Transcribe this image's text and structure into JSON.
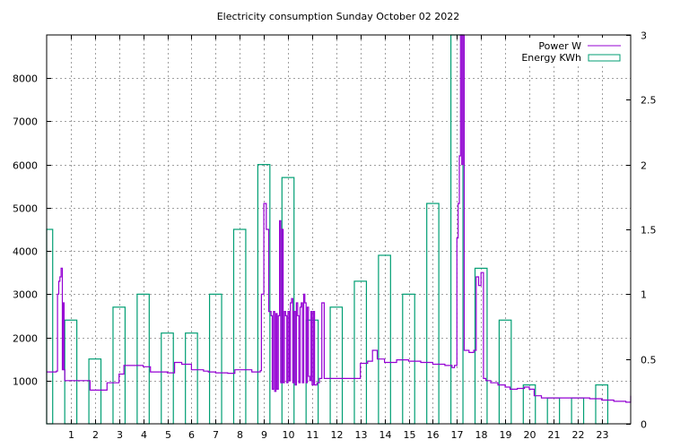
{
  "chart_data": {
    "type": "line",
    "title": "Electricity consumption Sunday October 02 2022",
    "xlim": [
      0,
      24.2
    ],
    "ylim": [
      0,
      9000
    ],
    "y2lim": [
      0,
      3
    ],
    "x_ticks": [
      1,
      2,
      3,
      4,
      5,
      6,
      7,
      8,
      9,
      10,
      11,
      12,
      13,
      14,
      15,
      16,
      17,
      18,
      19,
      20,
      21,
      22,
      23
    ],
    "y_ticks": [
      1000,
      2000,
      3000,
      4000,
      5000,
      6000,
      7000,
      8000
    ],
    "y2_ticks": [
      0,
      0.5,
      1,
      1.5,
      2,
      2.5,
      3
    ],
    "y2_tick_labels": [
      "0",
      "0.5",
      "1",
      "1.5",
      "2",
      "2.5",
      "3"
    ],
    "grid": true,
    "legend_position": "top-right",
    "colors": {
      "power": "#9400d3",
      "energy": "#009e73",
      "grid": "#a0a0a0"
    },
    "series": [
      {
        "name": "Power W",
        "axis": "y",
        "style": "steps",
        "x": [
          0,
          0.4,
          0.45,
          0.5,
          0.55,
          0.6,
          0.65,
          0.7,
          0.72,
          0.75,
          1.0,
          1.8,
          2.5,
          3.0,
          3.2,
          4.0,
          4.3,
          5.0,
          5.3,
          5.6,
          6.0,
          6.5,
          6.7,
          7.0,
          7.5,
          7.8,
          8.5,
          8.85,
          8.9,
          9.0,
          9.1,
          9.2,
          9.3,
          9.35,
          9.4,
          9.45,
          9.5,
          9.55,
          9.6,
          9.65,
          9.7,
          9.75,
          9.8,
          9.85,
          9.9,
          9.95,
          10.0,
          10.05,
          10.1,
          10.15,
          10.2,
          10.25,
          10.3,
          10.35,
          10.4,
          10.45,
          10.5,
          10.55,
          10.6,
          10.65,
          10.7,
          10.75,
          10.8,
          10.85,
          10.9,
          10.95,
          11.0,
          11.05,
          11.1,
          11.2,
          11.3,
          11.4,
          11.5,
          12.0,
          12.3,
          13.0,
          13.3,
          13.5,
          13.7,
          14.0,
          14.5,
          15.0,
          15.5,
          16.0,
          16.5,
          16.8,
          16.9,
          17.0,
          17.05,
          17.1,
          17.15,
          17.2,
          17.25,
          17.3,
          17.5,
          17.7,
          17.8,
          17.9,
          18.0,
          18.1,
          18.2,
          18.4,
          18.7,
          19.0,
          19.2,
          19.5,
          19.8,
          20.0,
          20.2,
          20.5,
          21.0,
          22.0,
          22.5,
          23.0,
          23.5,
          24.0,
          24.2
        ],
        "values": [
          1200,
          1220,
          3000,
          3300,
          3400,
          3600,
          1250,
          2800,
          1250,
          1000,
          1000,
          780,
          950,
          1150,
          1350,
          1320,
          1200,
          1180,
          1420,
          1380,
          1250,
          1220,
          1200,
          1180,
          1170,
          1250,
          1200,
          1230,
          3000,
          5100,
          4500,
          2600,
          2500,
          800,
          2600,
          750,
          2550,
          800,
          2500,
          4700,
          950,
          4500,
          950,
          2600,
          2500,
          950,
          2600,
          1000,
          2800,
          2900,
          950,
          2600,
          900,
          2800,
          2500,
          950,
          2700,
          2800,
          950,
          3000,
          2800,
          950,
          2700,
          1100,
          1000,
          2600,
          900,
          2600,
          900,
          950,
          1050,
          2800,
          1050,
          1050,
          1050,
          1400,
          1450,
          1700,
          1500,
          1420,
          1480,
          1450,
          1420,
          1380,
          1350,
          1300,
          1350,
          4300,
          5100,
          6200,
          9000,
          6000,
          9000,
          1700,
          1650,
          1700,
          3400,
          3200,
          3500,
          1050,
          1000,
          950,
          900,
          850,
          800,
          820,
          850,
          800,
          650,
          600,
          600,
          600,
          580,
          550,
          520,
          500,
          650
        ]
      },
      {
        "name": "Energy KWh",
        "axis": "y2",
        "style": "boxes",
        "x": [
          0,
          1,
          2,
          3,
          4,
          5,
          6,
          7,
          8,
          9,
          10,
          11,
          12,
          13,
          14,
          15,
          16,
          17,
          18,
          19,
          20,
          21,
          22,
          23
        ],
        "values": [
          1.5,
          0.8,
          0.5,
          0.9,
          1.0,
          0.7,
          0.7,
          1.0,
          1.5,
          2.0,
          1.9,
          0.8,
          0.9,
          1.1,
          1.3,
          1.0,
          1.7,
          3.1,
          1.2,
          0.8,
          0.3,
          0.2,
          0.2,
          0.3
        ]
      }
    ]
  }
}
